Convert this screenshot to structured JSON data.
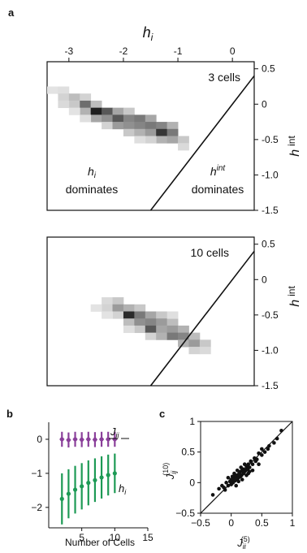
{
  "panels": {
    "a": {
      "letter": "a",
      "xlabel": "h",
      "xlabel_sub": "i",
      "ylabel": "h",
      "ylabel_sup": "int",
      "x_ticks": [
        "-3",
        "-2",
        "-1",
        "0"
      ],
      "y_ticks": [
        "0.5",
        "0",
        "-0.5",
        "-1.0",
        "-1.5"
      ],
      "top_label": "3 cells",
      "bottom_label": "10 cells",
      "left_region": {
        "symbol": "h",
        "sub": "i",
        "word": "dominates"
      },
      "right_region": {
        "symbol": "h",
        "sup": "int",
        "word": "dominates"
      }
    },
    "b": {
      "letter": "b",
      "xlabel": "Number of Cells",
      "x_ticks": [
        "5",
        "10",
        "15"
      ],
      "y_ticks": [
        "0",
        "−1",
        "−2"
      ],
      "label_J": "J",
      "label_J_sub": "ij",
      "label_h": "h",
      "label_h_sub": "i"
    },
    "c": {
      "letter": "c",
      "xlabel": "J",
      "xlabel_sub": "ii",
      "xlabel_sup": "(5)",
      "ylabel": "J",
      "ylabel_sub": "ij",
      "ylabel_sup": "(10)",
      "x_ticks": [
        "−0.5",
        "0",
        "0.5",
        "1"
      ],
      "y_ticks": [
        "1",
        "0.5",
        "0",
        "−0.5"
      ]
    }
  },
  "chart_data": [
    {
      "type": "heatmap",
      "panel": "a-top",
      "annotation": "3 cells",
      "xlim": [
        -3.4,
        0.4
      ],
      "ylim": [
        -1.5,
        0.6
      ],
      "cell_w": 0.2,
      "cell_h": 0.1,
      "cells": [
        [
          -3.3,
          0.2,
          0.08
        ],
        [
          -3.1,
          0.2,
          0.1
        ],
        [
          -3.1,
          0.1,
          0.15
        ],
        [
          -2.9,
          0.1,
          0.25
        ],
        [
          -2.9,
          0.0,
          0.2
        ],
        [
          -3.1,
          0.0,
          0.12
        ],
        [
          -2.7,
          0.1,
          0.15
        ],
        [
          -2.7,
          0.0,
          0.6
        ],
        [
          -2.7,
          -0.1,
          0.3
        ],
        [
          -2.5,
          0.0,
          0.25
        ],
        [
          -2.5,
          -0.1,
          0.95
        ],
        [
          -2.5,
          -0.2,
          0.35
        ],
        [
          -2.3,
          -0.1,
          0.7
        ],
        [
          -2.3,
          -0.2,
          0.45
        ],
        [
          -2.3,
          -0.3,
          0.15
        ],
        [
          -2.1,
          -0.1,
          0.35
        ],
        [
          -2.1,
          -0.2,
          0.7
        ],
        [
          -2.1,
          -0.3,
          0.4
        ],
        [
          -1.9,
          -0.1,
          0.2
        ],
        [
          -1.9,
          -0.2,
          0.5
        ],
        [
          -1.9,
          -0.3,
          0.45
        ],
        [
          -1.9,
          -0.4,
          0.2
        ],
        [
          -1.7,
          -0.2,
          0.55
        ],
        [
          -1.7,
          -0.3,
          0.5
        ],
        [
          -1.7,
          -0.4,
          0.3
        ],
        [
          -1.5,
          -0.2,
          0.35
        ],
        [
          -1.5,
          -0.3,
          0.55
        ],
        [
          -1.5,
          -0.4,
          0.4
        ],
        [
          -1.3,
          -0.3,
          0.5
        ],
        [
          -1.3,
          -0.4,
          0.85
        ],
        [
          -1.3,
          -0.5,
          0.3
        ],
        [
          -1.1,
          -0.3,
          0.3
        ],
        [
          -1.1,
          -0.4,
          0.55
        ],
        [
          -1.1,
          -0.5,
          0.35
        ],
        [
          -0.9,
          -0.5,
          0.2
        ],
        [
          -0.9,
          -0.6,
          0.12
        ],
        [
          -1.5,
          -0.5,
          0.15
        ],
        [
          -2.7,
          -0.2,
          0.1
        ],
        [
          -2.9,
          -0.1,
          0.08
        ],
        [
          -1.7,
          -0.5,
          0.1
        ]
      ],
      "boundary_line": [
        [
          -1.5,
          -1.5
        ],
        [
          0.4,
          0.4
        ]
      ]
    },
    {
      "type": "heatmap",
      "panel": "a-bottom",
      "annotation": "10 cells",
      "xlim": [
        -3.4,
        0.4
      ],
      "ylim": [
        -1.5,
        0.6
      ],
      "cell_w": 0.2,
      "cell_h": 0.1,
      "cells": [
        [
          -2.3,
          -0.3,
          0.12
        ],
        [
          -2.1,
          -0.3,
          0.2
        ],
        [
          -2.3,
          -0.4,
          0.15
        ],
        [
          -2.1,
          -0.4,
          0.4
        ],
        [
          -2.1,
          -0.5,
          0.15
        ],
        [
          -1.9,
          -0.4,
          0.3
        ],
        [
          -1.9,
          -0.5,
          0.9
        ],
        [
          -1.9,
          -0.6,
          0.25
        ],
        [
          -1.7,
          -0.4,
          0.2
        ],
        [
          -1.7,
          -0.5,
          0.55
        ],
        [
          -1.7,
          -0.6,
          0.45
        ],
        [
          -1.7,
          -0.7,
          0.2
        ],
        [
          -1.5,
          -0.5,
          0.35
        ],
        [
          -1.5,
          -0.6,
          0.5
        ],
        [
          -1.5,
          -0.7,
          0.7
        ],
        [
          -1.5,
          -0.8,
          0.15
        ],
        [
          -1.3,
          -0.5,
          0.2
        ],
        [
          -1.3,
          -0.6,
          0.4
        ],
        [
          -1.3,
          -0.7,
          0.35
        ],
        [
          -1.3,
          -0.8,
          0.3
        ],
        [
          -1.1,
          -0.6,
          0.25
        ],
        [
          -1.1,
          -0.7,
          0.4
        ],
        [
          -1.1,
          -0.8,
          0.55
        ],
        [
          -0.9,
          -0.7,
          0.3
        ],
        [
          -0.9,
          -0.8,
          0.5
        ],
        [
          -0.9,
          -0.9,
          0.3
        ],
        [
          -0.7,
          -0.8,
          0.25
        ],
        [
          -0.7,
          -0.9,
          0.4
        ],
        [
          -0.7,
          -1.0,
          0.15
        ],
        [
          -0.5,
          -0.9,
          0.2
        ],
        [
          -0.5,
          -1.0,
          0.12
        ],
        [
          -2.5,
          -0.4,
          0.08
        ],
        [
          -2.3,
          -0.5,
          0.08
        ],
        [
          -1.9,
          -0.7,
          0.1
        ],
        [
          -1.1,
          -0.5,
          0.1
        ]
      ],
      "boundary_line": [
        [
          -1.5,
          -1.5
        ],
        [
          0.4,
          0.4
        ]
      ]
    },
    {
      "type": "scatter",
      "panel": "b",
      "xlabel": "Number of Cells",
      "xlim": [
        0,
        15
      ],
      "ylim": [
        -2.6,
        0.5
      ],
      "series": [
        {
          "name": "J_ij",
          "color": "#8a3f9a",
          "x": [
            2,
            3,
            4,
            5,
            6,
            7,
            8,
            9,
            10
          ],
          "y": [
            0.0,
            -0.02,
            0.0,
            -0.01,
            0.0,
            -0.01,
            0.0,
            0.0,
            0.0
          ],
          "err": [
            0.22,
            0.22,
            0.22,
            0.22,
            0.22,
            0.22,
            0.22,
            0.22,
            0.22
          ]
        },
        {
          "name": "h_i",
          "color": "#1d9a55",
          "x": [
            2,
            3,
            4,
            5,
            6,
            7,
            8,
            9,
            10
          ],
          "y": [
            -1.75,
            -1.6,
            -1.48,
            -1.38,
            -1.28,
            -1.2,
            -1.12,
            -1.05,
            -1.0
          ],
          "err": [
            0.75,
            0.72,
            0.7,
            0.68,
            0.66,
            0.64,
            0.62,
            0.6,
            0.58
          ]
        }
      ]
    },
    {
      "type": "scatter",
      "panel": "c",
      "xlim": [
        -0.5,
        1
      ],
      "ylim": [
        -0.5,
        1
      ],
      "identity_line": true,
      "points": [
        [
          -0.3,
          -0.2
        ],
        [
          -0.2,
          -0.1
        ],
        [
          -0.15,
          -0.05
        ],
        [
          -0.1,
          -0.12
        ],
        [
          -0.08,
          0.0
        ],
        [
          -0.05,
          -0.05
        ],
        [
          -0.02,
          0.02
        ],
        [
          0.0,
          -0.03
        ],
        [
          0.02,
          0.05
        ],
        [
          0.03,
          0.0
        ],
        [
          0.05,
          0.08
        ],
        [
          0.06,
          0.03
        ],
        [
          0.08,
          0.1
        ],
        [
          0.1,
          0.05
        ],
        [
          0.1,
          0.12
        ],
        [
          0.12,
          0.08
        ],
        [
          0.13,
          0.15
        ],
        [
          0.15,
          0.1
        ],
        [
          0.15,
          0.18
        ],
        [
          0.17,
          0.12
        ],
        [
          0.18,
          0.2
        ],
        [
          0.2,
          0.15
        ],
        [
          0.2,
          0.22
        ],
        [
          0.22,
          0.18
        ],
        [
          0.24,
          0.2
        ],
        [
          0.25,
          0.26
        ],
        [
          0.27,
          0.22
        ],
        [
          0.28,
          0.3
        ],
        [
          0.3,
          0.25
        ],
        [
          0.32,
          0.35
        ],
        [
          0.35,
          0.3
        ],
        [
          0.38,
          0.4
        ],
        [
          0.4,
          0.35
        ],
        [
          0.42,
          0.38
        ],
        [
          0.45,
          0.48
        ],
        [
          0.5,
          0.45
        ],
        [
          0.55,
          0.5
        ],
        [
          0.6,
          0.55
        ],
        [
          0.62,
          0.6
        ],
        [
          0.7,
          0.65
        ],
        [
          0.75,
          0.72
        ],
        [
          0.82,
          0.85
        ],
        [
          0.05,
          0.15
        ],
        [
          0.1,
          0.2
        ],
        [
          -0.05,
          0.08
        ],
        [
          0.08,
          -0.05
        ],
        [
          0.18,
          0.05
        ],
        [
          0.25,
          0.12
        ],
        [
          0.02,
          0.1
        ],
        [
          0.12,
          0.02
        ],
        [
          -0.12,
          -0.08
        ],
        [
          0.35,
          0.2
        ],
        [
          0.22,
          0.3
        ],
        [
          0.3,
          0.18
        ],
        [
          0.0,
          0.05
        ],
        [
          0.07,
          0.12
        ],
        [
          0.16,
          0.25
        ],
        [
          0.28,
          0.15
        ],
        [
          0.45,
          0.3
        ],
        [
          0.5,
          0.55
        ]
      ]
    }
  ]
}
